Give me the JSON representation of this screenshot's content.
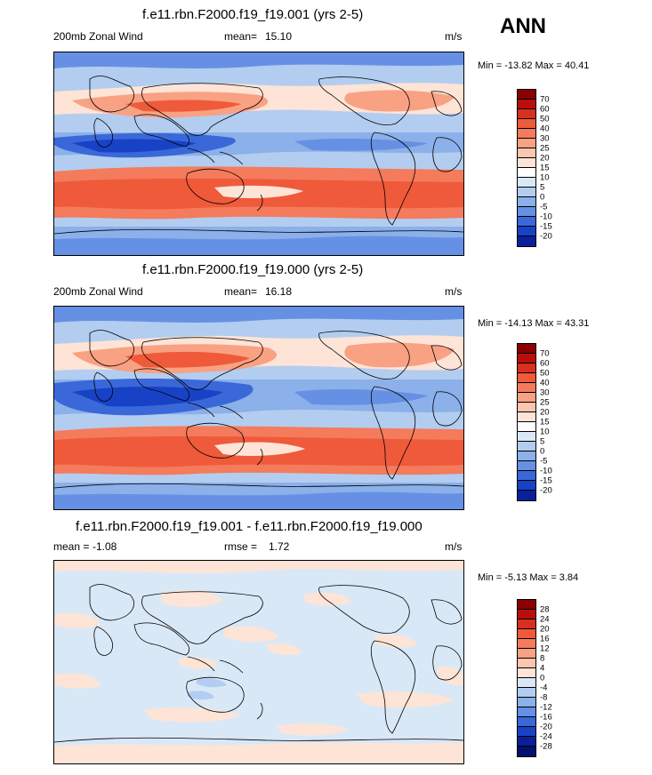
{
  "season": "ANN",
  "chart_data": [
    {
      "type": "heatmap",
      "title": "f.e11.rbn.F2000.f19_f19.001 (yrs 2-5)",
      "variable": "200mb Zonal Wind",
      "mean_label": "mean=",
      "mean": "15.10",
      "units": "m/s",
      "min_max": "Min = -13.82 Max =  40.41",
      "colorbar_levels": [
        "70",
        "60",
        "50",
        "40",
        "30",
        "25",
        "20",
        "15",
        "10",
        "5",
        "0",
        "-5",
        "-10",
        "-15",
        "-20"
      ],
      "colorbar_colors": [
        "#8b0000",
        "#b80f0a",
        "#d7301f",
        "#ef5a3a",
        "#f47b5c",
        "#f9a183",
        "#fcc6ae",
        "#fde4d6",
        "#ffffff",
        "#d9e8f7",
        "#b3cdf0",
        "#8bb0ea",
        "#6690e3",
        "#3a68d8",
        "#1842c6",
        "#0a1f9a"
      ],
      "region": "global"
    },
    {
      "type": "heatmap",
      "title": "f.e11.rbn.F2000.f19_f19.000 (yrs 2-5)",
      "variable": "200mb Zonal Wind",
      "mean_label": "mean=",
      "mean": "16.18",
      "units": "m/s",
      "min_max": "Min = -14.13 Max =  43.31",
      "colorbar_levels": [
        "70",
        "60",
        "50",
        "40",
        "30",
        "25",
        "20",
        "15",
        "10",
        "5",
        "0",
        "-5",
        "-10",
        "-15",
        "-20"
      ],
      "colorbar_colors": [
        "#8b0000",
        "#b80f0a",
        "#d7301f",
        "#ef5a3a",
        "#f47b5c",
        "#f9a183",
        "#fcc6ae",
        "#fde4d6",
        "#ffffff",
        "#d9e8f7",
        "#b3cdf0",
        "#8bb0ea",
        "#6690e3",
        "#3a68d8",
        "#1842c6",
        "#0a1f9a"
      ],
      "region": "global"
    },
    {
      "type": "heatmap",
      "title": "f.e11.rbn.F2000.f19_f19.001 - f.e11.rbn.F2000.f19_f19.000",
      "variable": "mean =",
      "mean_label": "",
      "mean": "-1.08",
      "rmse_label": "rmse =",
      "rmse": "1.72",
      "units": "m/s",
      "min_max": "Min =  -5.13 Max =   3.84",
      "colorbar_levels": [
        "28",
        "24",
        "20",
        "16",
        "12",
        "8",
        "4",
        "0",
        "-4",
        "-8",
        "-12",
        "-16",
        "-20",
        "-24",
        "-28"
      ],
      "colorbar_colors": [
        "#8b0000",
        "#b80f0a",
        "#d7301f",
        "#ef5a3a",
        "#f47b5c",
        "#f9a183",
        "#fcc6ae",
        "#fde4d6",
        "#d9e8f7",
        "#b3cdf0",
        "#8bb0ea",
        "#6690e3",
        "#3a68d8",
        "#1842c6",
        "#0a1f9a",
        "#04106e"
      ],
      "region": "global"
    }
  ]
}
